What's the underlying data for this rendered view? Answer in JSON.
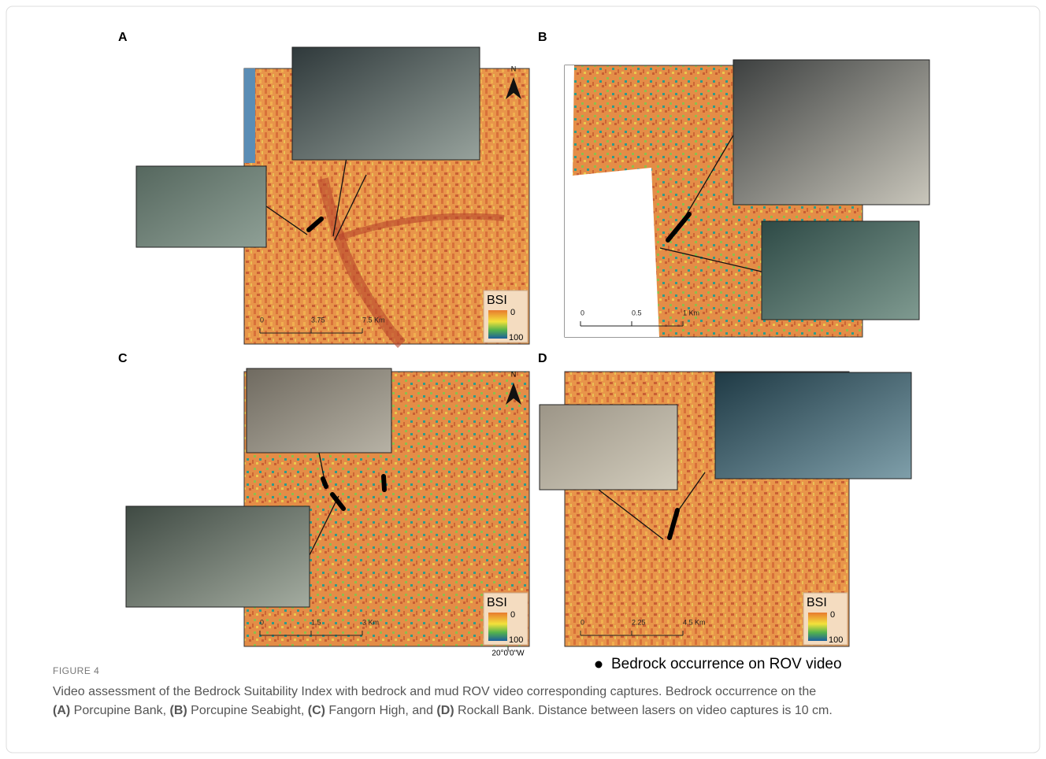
{
  "figure": {
    "panels": [
      {
        "label": "A",
        "north": "N",
        "scale": [
          "0",
          "3.75",
          "7.5 Km"
        ],
        "legend": {
          "title": "BSI",
          "min": "0",
          "max": "100"
        }
      },
      {
        "label": "B",
        "scale": [
          "0",
          "0.5",
          "1 Km"
        ]
      },
      {
        "label": "C",
        "north": "N",
        "scale": [
          "0",
          "1.5",
          "3 Km"
        ],
        "legend": {
          "title": "BSI",
          "min": "0",
          "max": "100"
        },
        "longitude": "20°0'0\"W"
      },
      {
        "label": "D",
        "scale": [
          "0",
          "2.25",
          "4.5 Km"
        ],
        "legend": {
          "title": "BSI",
          "min": "0",
          "max": "100"
        }
      }
    ],
    "marker_legend": "Bedrock occurrence on ROV video",
    "number": "FIGURE 4",
    "caption": [
      {
        "text": "Video assessment of the Bedrock Suitability Index with bedrock and mud ROV video corresponding captures. Bedrock occurrence on the",
        "bold": false
      },
      {
        "text": "(A)",
        "bold": true
      },
      {
        "text": " Porcupine Bank, ",
        "bold": false
      },
      {
        "text": "(B)",
        "bold": true
      },
      {
        "text": " Porcupine Seabight, ",
        "bold": false
      },
      {
        "text": "(C)",
        "bold": true
      },
      {
        "text": " Fangorn High, and ",
        "bold": false
      },
      {
        "text": "(D)",
        "bold": true
      },
      {
        "text": " Rockall Bank. Distance between lasers on video captures is 10 cm.",
        "bold": false
      }
    ]
  }
}
